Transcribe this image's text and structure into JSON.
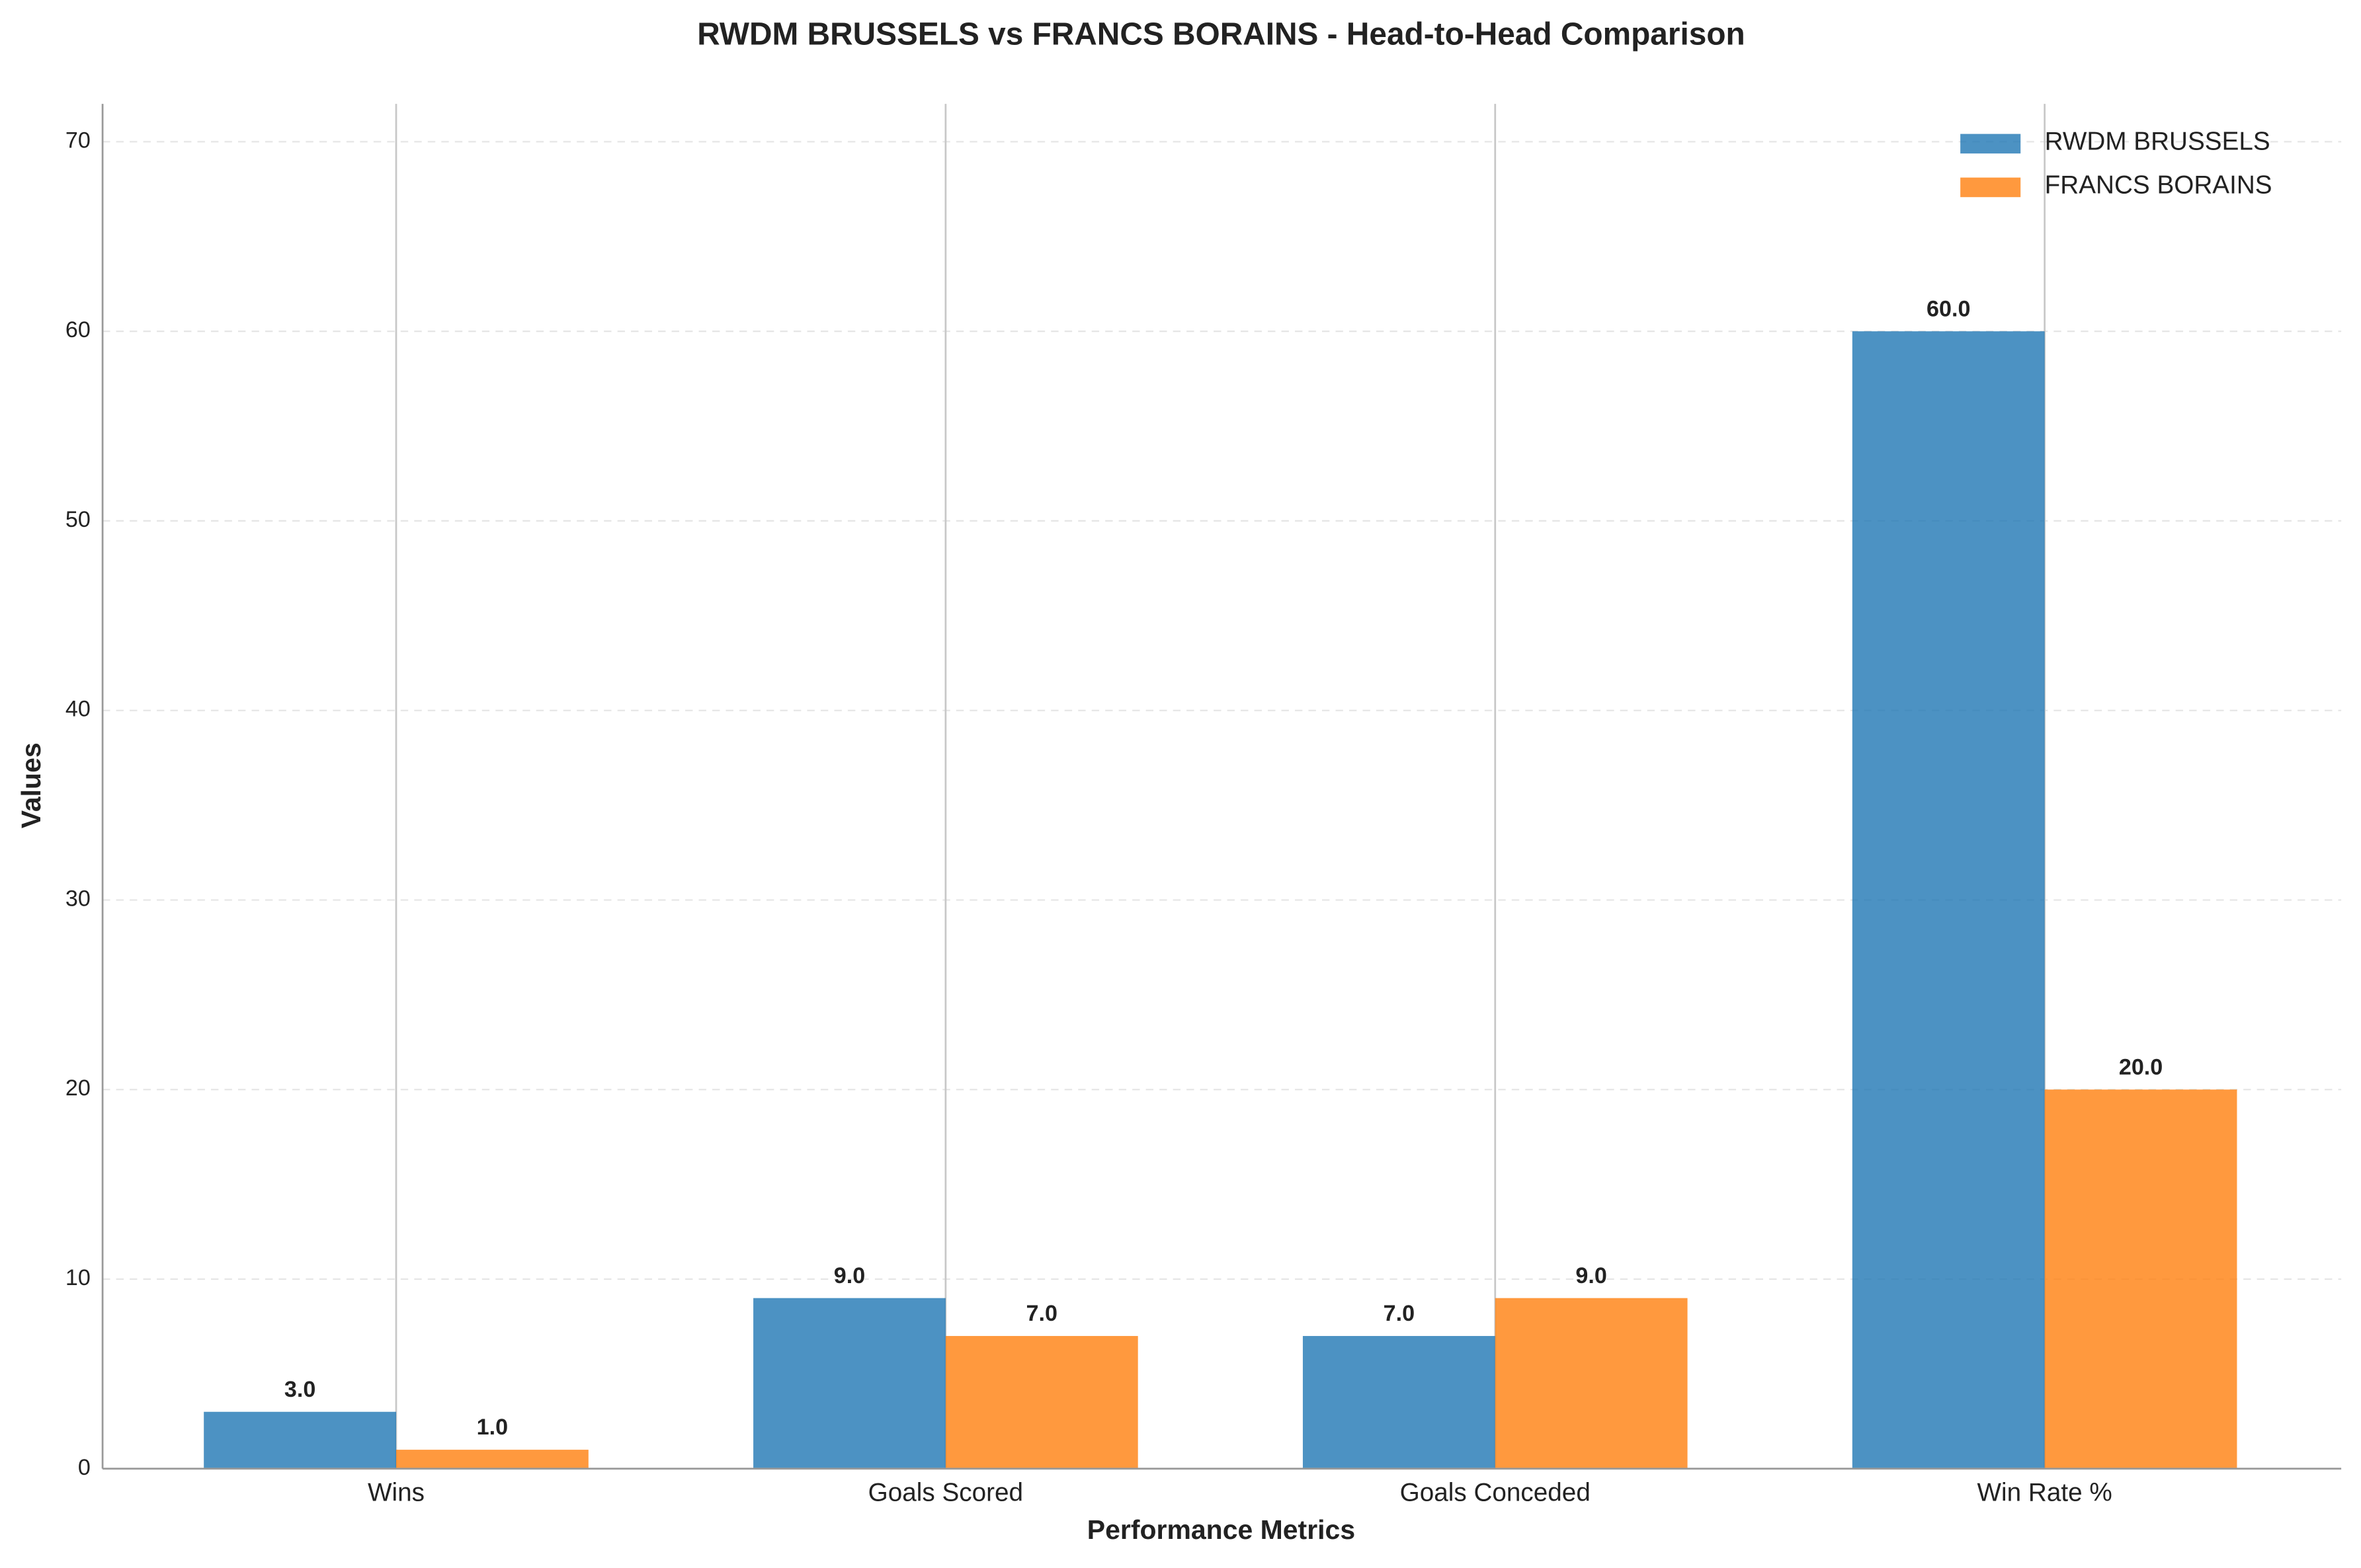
{
  "chart_data": {
    "type": "bar",
    "title": "RWDM BRUSSELS vs FRANCS BORAINS - Head-to-Head Comparison",
    "x_label": "Performance Metrics",
    "y_label": "Values",
    "categories": [
      "Wins",
      "Goals Scored",
      "Goals Conceded",
      "Win Rate %"
    ],
    "series": [
      {
        "name": "RWDM BRUSSELS",
        "color": "#1f77b4",
        "values": [
          3,
          9,
          7,
          60
        ],
        "value_labels": [
          "3.0",
          "9.0",
          "7.0",
          "60.0"
        ]
      },
      {
        "name": "FRANCS BORAINS",
        "color": "#ff7f0e",
        "values": [
          1,
          7,
          9,
          20
        ],
        "value_labels": [
          "1.0",
          "7.0",
          "9.0",
          "20.0"
        ]
      }
    ],
    "ylim": [
      0,
      72
    ],
    "yticks": [
      0,
      10,
      20,
      30,
      40,
      50,
      60,
      70
    ],
    "grid": true,
    "legend": "upper right"
  }
}
